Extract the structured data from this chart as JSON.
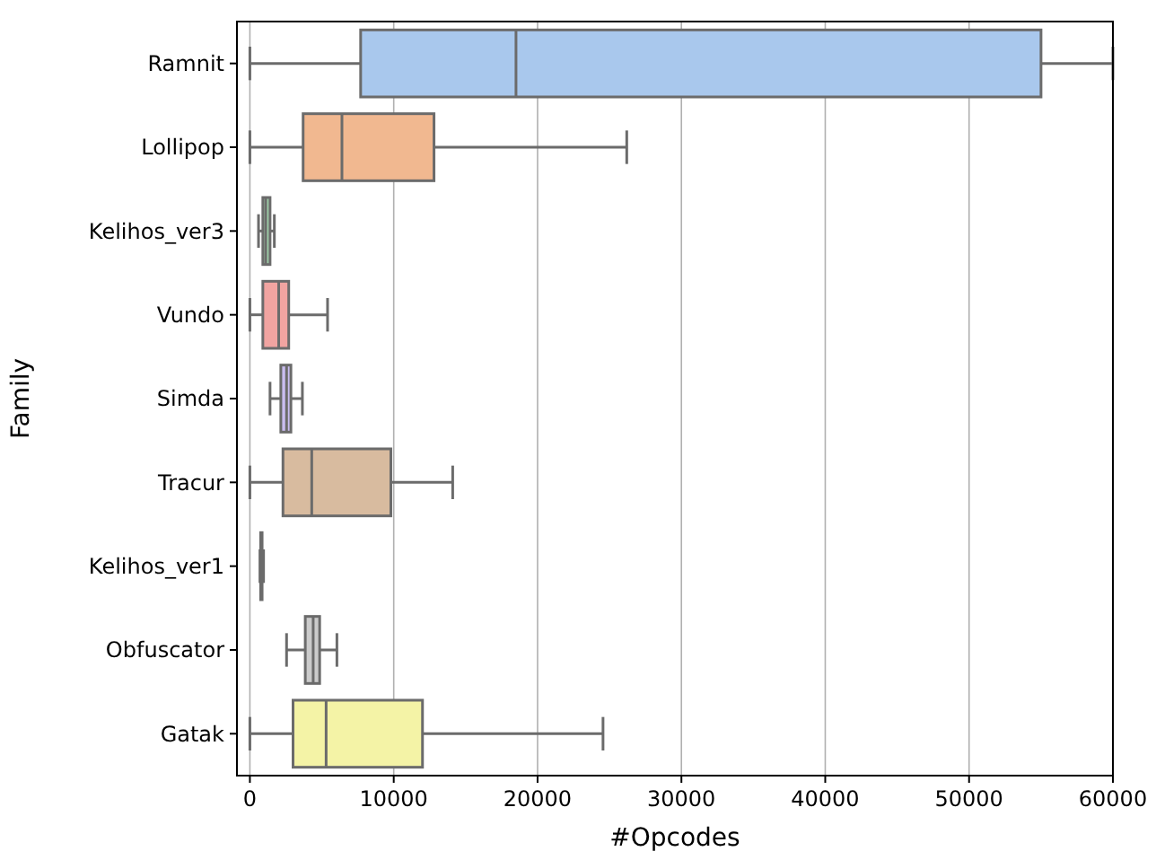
{
  "chart_data": {
    "type": "box",
    "orientation": "horizontal",
    "xlabel": "#Opcodes",
    "ylabel": "Family",
    "categories": [
      "Ramnit",
      "Lollipop",
      "Kelihos_ver3",
      "Vundo",
      "Simda",
      "Tracur",
      "Kelihos_ver1",
      "Obfuscator",
      "Gatak"
    ],
    "colors": [
      "#a9c8ed",
      "#f1b890",
      "#9fcfa9",
      "#f1a4a1",
      "#c9bdf1",
      "#d8bb9f",
      "#efb7dd",
      "#cbcbcb",
      "#f4f3a6"
    ],
    "boxes": [
      {
        "low": 0,
        "q1": 7700,
        "median": 18500,
        "q3": 55000,
        "high": 60000
      },
      {
        "low": 0,
        "q1": 3700,
        "median": 6400,
        "q3": 12800,
        "high": 26200
      },
      {
        "low": 600,
        "q1": 900,
        "median": 1100,
        "q3": 1400,
        "high": 1700
      },
      {
        "low": 0,
        "q1": 900,
        "median": 2000,
        "q3": 2700,
        "high": 5400
      },
      {
        "low": 1400,
        "q1": 2150,
        "median": 2550,
        "q3": 2850,
        "high": 3650
      },
      {
        "low": 0,
        "q1": 2300,
        "median": 4300,
        "q3": 9800,
        "high": 14100
      },
      {
        "low": 700,
        "q1": 750,
        "median": 800,
        "q3": 850,
        "high": 950
      },
      {
        "low": 2550,
        "q1": 3850,
        "median": 4400,
        "q3": 4850,
        "high": 6050
      },
      {
        "low": 0,
        "q1": 3000,
        "median": 5300,
        "q3": 12000,
        "high": 24550
      }
    ],
    "xlim": [
      -900,
      60000
    ],
    "xticks": [
      0,
      10000,
      20000,
      30000,
      40000,
      50000,
      60000
    ],
    "grid": "x"
  }
}
